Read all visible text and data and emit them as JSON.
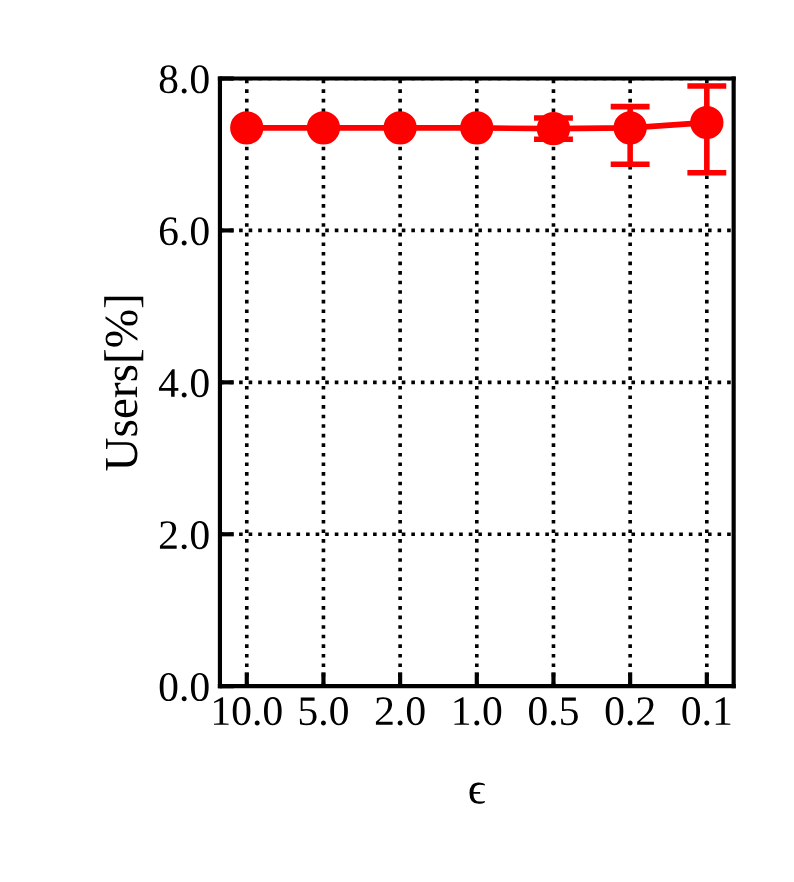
{
  "chart_data": {
    "type": "line",
    "xlabel": "ϵ",
    "ylabel": "Users[%]",
    "categories": [
      "10.0",
      "5.0",
      "2.0",
      "1.0",
      "0.5",
      "0.2",
      "0.1"
    ],
    "series": [
      {
        "color": "#ff0000",
        "values": [
          7.35,
          7.35,
          7.35,
          7.35,
          7.34,
          7.35,
          7.42
        ],
        "errors": [
          null,
          null,
          null,
          null,
          [
            7.2,
            7.48
          ],
          [
            6.87,
            7.63
          ],
          [
            6.76,
            7.9
          ]
        ]
      }
    ],
    "ylim": [
      0,
      8
    ],
    "yticks": [
      {
        "value": 0,
        "label": "0.0"
      },
      {
        "value": 2,
        "label": "2.0"
      },
      {
        "value": 4,
        "label": "4.0"
      },
      {
        "value": 6,
        "label": "6.0"
      },
      {
        "value": 8,
        "label": "8.0"
      }
    ],
    "grid": true,
    "marker": "circle",
    "line_style": "solid"
  }
}
